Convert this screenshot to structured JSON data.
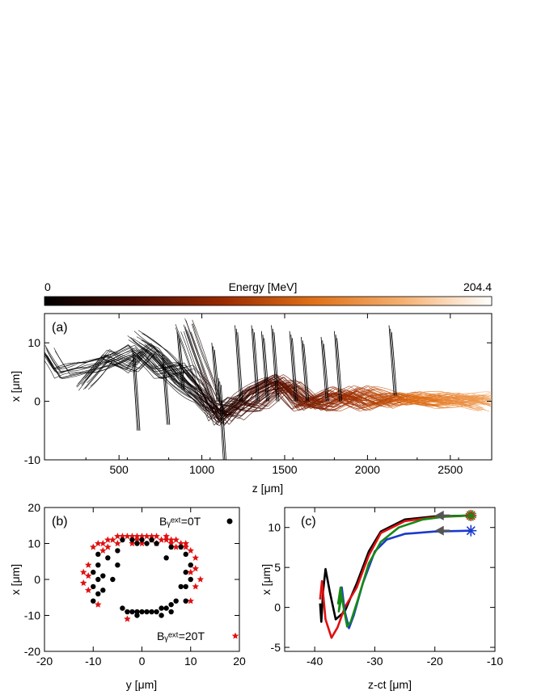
{
  "colorbar": {
    "label": "Energy [MeV]",
    "min_label": "0",
    "max_label": "204.4",
    "colors": [
      "#000000",
      "#4a0a00",
      "#9a2a00",
      "#e07018",
      "#f5b070",
      "#ffffff"
    ]
  },
  "chart_data": [
    {
      "type": "line",
      "panel_label": "(a)",
      "xlabel": "z [μm]",
      "ylabel": "x [μm]",
      "xlim": [
        50,
        2750
      ],
      "ylim": [
        -10,
        15
      ],
      "xticks": [
        500,
        1000,
        1500,
        2000,
        2500
      ],
      "yticks": [
        -10,
        0,
        10
      ],
      "series": [
        {
          "description_free": true,
          "points": [
            [
              60,
              9
            ],
            [
              150,
              5
            ],
            [
              300,
              6
            ],
            [
              450,
              7
            ],
            [
              600,
              9
            ],
            [
              750,
              5
            ],
            [
              900,
              6
            ],
            [
              1000,
              3
            ],
            [
              1100,
              -2
            ],
            [
              1200,
              0
            ],
            [
              1350,
              -1
            ],
            [
              1500,
              3
            ],
            [
              1650,
              0
            ],
            [
              1800,
              1
            ],
            [
              2000,
              0
            ],
            [
              2200,
              1
            ],
            [
              2400,
              0
            ],
            [
              2600,
              1
            ],
            [
              2750,
              0
            ]
          ]
        },
        {
          "points": [
            [
              300,
              3
            ],
            [
              450,
              8
            ],
            [
              600,
              6
            ],
            [
              700,
              9
            ],
            [
              850,
              4
            ],
            [
              1000,
              1
            ],
            [
              1150,
              -3
            ],
            [
              1300,
              2
            ],
            [
              1450,
              4
            ],
            [
              1600,
              -1
            ],
            [
              1800,
              2
            ],
            [
              2000,
              -1
            ],
            [
              2200,
              1
            ],
            [
              2450,
              -0.5
            ],
            [
              2700,
              0.5
            ]
          ]
        },
        {
          "points": [
            [
              600,
              11
            ],
            [
              750,
              8
            ],
            [
              900,
              3
            ],
            [
              1050,
              -1
            ],
            [
              1200,
              -2
            ],
            [
              1400,
              2
            ],
            [
              1550,
              3
            ],
            [
              1700,
              -1
            ],
            [
              1900,
              2
            ],
            [
              2100,
              -0.5
            ],
            [
              2300,
              1
            ],
            [
              2550,
              0
            ],
            [
              2750,
              1
            ]
          ]
        },
        {
          "points": [
            [
              900,
              13
            ],
            [
              1000,
              5
            ],
            [
              1100,
              -3
            ],
            [
              1250,
              1
            ],
            [
              1450,
              4
            ],
            [
              1600,
              0
            ],
            [
              1800,
              -1
            ],
            [
              2000,
              2
            ],
            [
              2200,
              0
            ],
            [
              2450,
              1
            ],
            [
              2700,
              -1
            ]
          ]
        }
      ],
      "vertical_traces": [
        [
          580,
          9,
          -5
        ],
        [
          760,
          8,
          -4
        ],
        [
          850,
          12,
          2
        ],
        [
          1060,
          10,
          0
        ],
        [
          1100,
          4,
          -10
        ],
        [
          1200,
          13,
          0
        ],
        [
          1300,
          13,
          0
        ],
        [
          1360,
          12,
          0
        ],
        [
          1420,
          13,
          0
        ],
        [
          1530,
          12,
          0
        ],
        [
          1600,
          11,
          0
        ],
        [
          1720,
          11,
          0
        ],
        [
          1800,
          12,
          0
        ],
        [
          2130,
          13,
          1
        ]
      ]
    },
    {
      "type": "scatter",
      "panel_label": "(b)",
      "xlabel": "y [μm]",
      "ylabel": "x [μm]",
      "xlim": [
        -20,
        20
      ],
      "ylim": [
        -20,
        20
      ],
      "xticks": [
        -20,
        -10,
        0,
        10,
        20
      ],
      "yticks": [
        -20,
        -10,
        0,
        10,
        20
      ],
      "series": [
        {
          "name": "B_y^ext=0T",
          "legend_text": "Bᵧᵉˣᵗ=0T",
          "marker": "circle",
          "color": "#000000",
          "points": [
            [
              -9,
              7
            ],
            [
              -9,
              4
            ],
            [
              -10,
              2
            ],
            [
              -9,
              0
            ],
            [
              -10,
              -2
            ],
            [
              -9,
              -4
            ],
            [
              -10,
              -6
            ],
            [
              -8,
              -3
            ],
            [
              -8,
              1
            ],
            [
              -7,
              6
            ],
            [
              -5,
              8
            ],
            [
              -5,
              4
            ],
            [
              -6,
              0
            ],
            [
              -4,
              -8
            ],
            [
              -3,
              -9
            ],
            [
              -2,
              -9
            ],
            [
              -1,
              -9
            ],
            [
              0,
              -9
            ],
            [
              1,
              -9
            ],
            [
              2,
              -9
            ],
            [
              3,
              -9
            ],
            [
              4,
              -8
            ],
            [
              5,
              -8
            ],
            [
              6,
              -7
            ],
            [
              7,
              -6
            ],
            [
              6,
              -9
            ],
            [
              -1,
              -10
            ],
            [
              4,
              -10
            ],
            [
              9,
              -6
            ],
            [
              9,
              -2
            ],
            [
              10,
              0
            ],
            [
              9,
              2
            ],
            [
              10,
              4
            ],
            [
              9,
              7
            ],
            [
              8,
              9
            ],
            [
              6,
              9
            ],
            [
              8,
              -2
            ],
            [
              5,
              6
            ],
            [
              2,
              11
            ],
            [
              0,
              11
            ],
            [
              -2,
              11
            ],
            [
              -4,
              11
            ],
            [
              -1,
              10
            ],
            [
              3,
              10
            ],
            [
              1,
              10
            ]
          ]
        },
        {
          "name": "B_y^ext=20T",
          "legend_text": "Bᵧᵉˣᵗ=20T",
          "marker": "star",
          "color": "#e01010",
          "points": [
            [
              -12,
              2
            ],
            [
              -11,
              4
            ],
            [
              -12,
              -1
            ],
            [
              -11,
              -3
            ],
            [
              -9,
              -7
            ],
            [
              -10,
              9
            ],
            [
              -8,
              10
            ],
            [
              -7,
              11
            ],
            [
              -6,
              11
            ],
            [
              -5,
              12
            ],
            [
              -4,
              12
            ],
            [
              -3,
              12
            ],
            [
              -2,
              12
            ],
            [
              -1,
              12
            ],
            [
              0,
              12
            ],
            [
              1,
              12
            ],
            [
              2,
              12
            ],
            [
              3,
              12
            ],
            [
              4,
              11
            ],
            [
              5,
              11
            ],
            [
              6,
              11
            ],
            [
              7,
              11
            ],
            [
              8,
              10
            ],
            [
              9,
              9
            ],
            [
              10,
              8
            ],
            [
              11,
              6
            ],
            [
              11,
              3
            ],
            [
              12,
              0
            ],
            [
              11,
              -2
            ],
            [
              10,
              -6
            ],
            [
              -3,
              -11
            ],
            [
              -2,
              10
            ],
            [
              0,
              10
            ],
            [
              3,
              10
            ],
            [
              6,
              10
            ],
            [
              -7,
              9
            ],
            [
              -9,
              10
            ],
            [
              9,
              10
            ],
            [
              -1,
              11
            ],
            [
              2,
              11
            ],
            [
              5,
              12
            ],
            [
              -5,
              10
            ],
            [
              7,
              9
            ],
            [
              -8,
              8
            ],
            [
              10,
              2
            ],
            [
              -11,
              1
            ]
          ]
        }
      ]
    },
    {
      "type": "line",
      "panel_label": "(c)",
      "xlabel": "z-ct [μm]",
      "ylabel": "x [μm]",
      "xlim": [
        -45,
        -10
      ],
      "ylim": [
        -5.5,
        12.5
      ],
      "xticks": [
        -40,
        -30,
        -20,
        -10
      ],
      "yticks": [
        -5,
        0,
        5,
        10
      ],
      "series": [
        {
          "color": "#000000",
          "points": [
            [
              -14,
              11.5
            ],
            [
              -20,
              11.4
            ],
            [
              -25,
              11
            ],
            [
              -29,
              9.5
            ],
            [
              -31,
              7
            ],
            [
              -33,
              3
            ],
            [
              -35,
              -0.5
            ],
            [
              -36.5,
              -1.5
            ],
            [
              -37.5,
              2
            ],
            [
              -38.2,
              4.8
            ],
            [
              -38.6,
              2
            ],
            [
              -38.9,
              -1.8
            ],
            [
              -39.1,
              0.5
            ]
          ]
        },
        {
          "color": "#e01010",
          "points": [
            [
              -14,
              11.5
            ],
            [
              -20,
              11.3
            ],
            [
              -25,
              10.8
            ],
            [
              -29,
              9.3
            ],
            [
              -31,
              6.5
            ],
            [
              -33,
              2.5
            ],
            [
              -35,
              0
            ],
            [
              -36.2,
              -2.5
            ],
            [
              -37.2,
              -3.8
            ],
            [
              -38.2,
              -1.5
            ],
            [
              -38.8,
              3.3
            ],
            [
              -39.1,
              1
            ]
          ]
        },
        {
          "color": "#1a3acc",
          "points": [
            [
              -14,
              9.6
            ],
            [
              -20,
              9.5
            ],
            [
              -25,
              9.2
            ],
            [
              -28,
              8.5
            ],
            [
              -30,
              7
            ],
            [
              -32,
              3
            ],
            [
              -33.5,
              -1
            ],
            [
              -34.3,
              -2.6
            ],
            [
              -35,
              -0.5
            ],
            [
              -35.5,
              2.5
            ],
            [
              -36,
              0.5
            ]
          ]
        },
        {
          "color": "#168a16",
          "points": [
            [
              -14,
              11.5
            ],
            [
              -18,
              11.4
            ],
            [
              -22,
              11
            ],
            [
              -26,
              10
            ],
            [
              -29,
              8.2
            ],
            [
              -31,
              5.5
            ],
            [
              -32.8,
              1
            ],
            [
              -34,
              -1.8
            ],
            [
              -34.6,
              -2.4
            ],
            [
              -35.2,
              0
            ],
            [
              -35.7,
              2.5
            ],
            [
              -36.1,
              0.5
            ],
            [
              -35.6,
              2
            ],
            [
              -36,
              -0.5
            ],
            [
              -35.5,
              1.5
            ]
          ]
        }
      ],
      "arrows": [
        {
          "from": [
            -17.5,
            11.5
          ],
          "to": [
            -20,
            11.5
          ],
          "color": "#555555"
        },
        {
          "from": [
            -17.5,
            9.6
          ],
          "to": [
            -20,
            9.6
          ],
          "color": "#555555"
        }
      ],
      "start_markers": [
        {
          "x": -14,
          "y": 11.5,
          "colors": [
            "#e01010",
            "#168a16"
          ]
        },
        {
          "x": -14,
          "y": 9.6,
          "colors": [
            "#1a3acc"
          ]
        }
      ]
    }
  ]
}
